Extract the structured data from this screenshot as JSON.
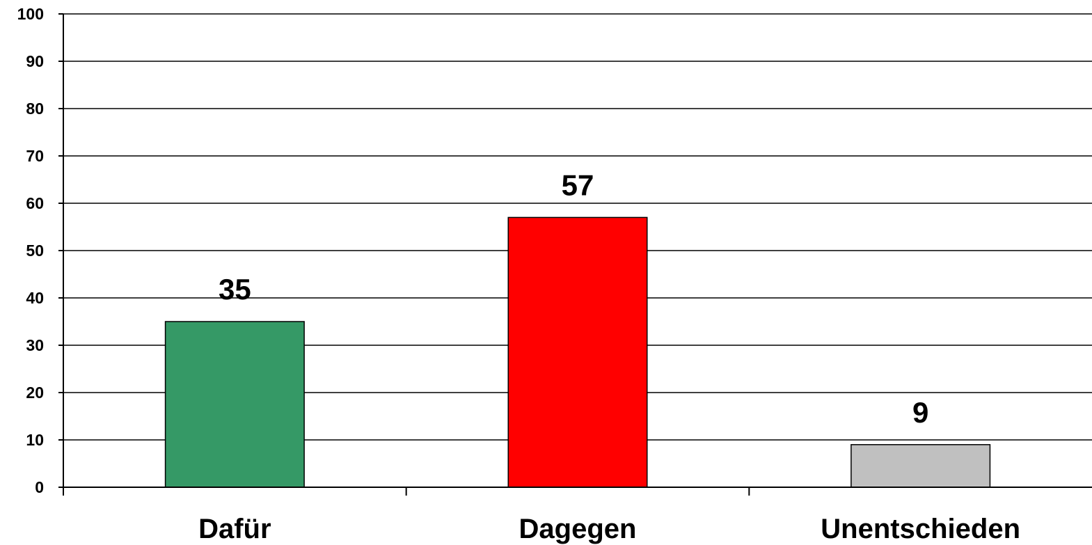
{
  "chart_data": {
    "type": "bar",
    "categories": [
      "Dafür",
      "Dagegen",
      "Unentschieden"
    ],
    "values": [
      35,
      57,
      9
    ],
    "colors": [
      "#359966",
      "#ff0000",
      "#c0c0c0"
    ],
    "ylim": [
      0,
      100
    ],
    "yticks": [
      0,
      10,
      20,
      30,
      40,
      50,
      60,
      70,
      80,
      90,
      100
    ],
    "grid": true,
    "legend": "none",
    "title": "",
    "xlabel": "",
    "ylabel": ""
  }
}
